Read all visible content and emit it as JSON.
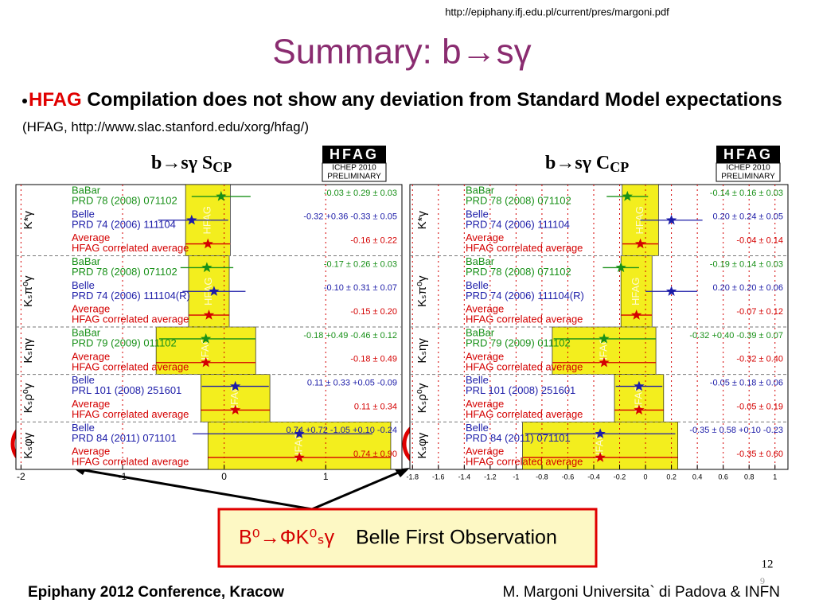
{
  "url": "http://epiphany.ifj.edu.pl/current/pres/margoni.pdf",
  "title": "Summary: b→sγ",
  "bullet": {
    "highlight": "HFAG",
    "text": " Compilation does not show any deviation from Standard Model expectations",
    "ref": "(HFAG, http://www.slac.stanford.edu/xorg/hfag/)"
  },
  "panels": [
    {
      "title": "b→sγ S",
      "title_sub": "CP",
      "badge": [
        "HFAG",
        "ICHEP 2010",
        "PRELIMINARY"
      ],
      "xlim": [
        -2.05,
        1.75
      ],
      "xticks": [
        -2,
        -1,
        0,
        1
      ],
      "groups": [
        {
          "mode": "K*γ",
          "rows": [
            {
              "name": "BaBar",
              "ref": "PRD 78 (2008) 071102",
              "value": -0.03,
              "err": [
                0.29,
                0.29
              ],
              "label": "-0.03 ± 0.29 ± 0.03",
              "color": "#189018"
            },
            {
              "name": "Belle",
              "ref": "PRD 74 (2006) 111104",
              "value": -0.32,
              "err": [
                0.33,
                0.36
              ],
              "label": "-0.32 +0.36 -0.33 ± 0.05",
              "color": "#1c1ca8"
            },
            {
              "name": "Average",
              "ref": "HFAG correlated average",
              "value": -0.16,
              "err": [
                0.22,
                0.22
              ],
              "label": "-0.16 ± 0.22",
              "color": "#d40000"
            }
          ]
        },
        {
          "mode": "Kₛπ⁰γ",
          "rows": [
            {
              "name": "BaBar",
              "ref": "PRD 78 (2008) 071102",
              "value": -0.17,
              "err": [
                0.26,
                0.26
              ],
              "label": "-0.17 ± 0.26 ± 0.03",
              "color": "#189018"
            },
            {
              "name": "Belle",
              "ref": "PRD 74 (2006) 111104(R)",
              "value": -0.1,
              "err": [
                0.31,
                0.31
              ],
              "label": "-0.10 ± 0.31 ± 0.07",
              "color": "#1c1ca8"
            },
            {
              "name": "Average",
              "ref": "HFAG correlated average",
              "value": -0.15,
              "err": [
                0.2,
                0.2
              ],
              "label": "-0.15 ± 0.20",
              "color": "#d40000"
            }
          ]
        },
        {
          "mode": "Kₛηγ",
          "rows": [
            {
              "name": "BaBar",
              "ref": "PRD 79 (2009) 011102",
              "value": -0.18,
              "err": [
                0.46,
                0.49
              ],
              "label": "-0.18 +0.49 -0.46 ± 0.12",
              "color": "#189018"
            },
            {
              "name": "Average",
              "ref": "HFAG correlated average",
              "value": -0.18,
              "err": [
                0.49,
                0.49
              ],
              "label": "-0.18 ± 0.49",
              "color": "#d40000"
            }
          ]
        },
        {
          "mode": "Kₛρ⁰γ",
          "rows": [
            {
              "name": "Belle",
              "ref": "PRL 101 (2008) 251601",
              "value": 0.11,
              "err": [
                0.33,
                0.33
              ],
              "label": "0.11 ± 0.33 +0.05 -0.09",
              "color": "#1c1ca8"
            },
            {
              "name": "Average",
              "ref": "HFAG correlated average",
              "value": 0.11,
              "err": [
                0.34,
                0.34
              ],
              "label": "0.11 ± 0.34",
              "color": "#d40000"
            }
          ]
        },
        {
          "mode": "Kₛφγ",
          "rows": [
            {
              "name": "Belle",
              "ref": "PRD 84 (2011) 071101",
              "value": 0.74,
              "err": [
                1.05,
                0.72
              ],
              "label": "0.74 +0.72 -1.05 +0.10 -0.24",
              "color": "#1c1ca8"
            },
            {
              "name": "Average",
              "ref": "HFAG correlated average",
              "value": 0.74,
              "err": [
                0.9,
                0.9
              ],
              "label": "0.74 ± 0.90",
              "color": "#d40000"
            }
          ]
        }
      ]
    },
    {
      "title": "b→sγ C",
      "title_sub": "CP",
      "badge": [
        "HFAG",
        "ICHEP 2010",
        "PRELIMINARY"
      ],
      "xlim": [
        -1.82,
        1.1
      ],
      "xticks": [
        -1.8,
        -1.6,
        -1.4,
        -1.2,
        -1,
        -0.8,
        -0.6,
        -0.4,
        -0.2,
        0,
        0.2,
        0.4,
        0.6,
        0.8,
        1
      ],
      "groups": [
        {
          "mode": "K*γ",
          "rows": [
            {
              "name": "BaBar",
              "ref": "PRD 78 (2008) 071102",
              "value": -0.14,
              "err": [
                0.16,
                0.16
              ],
              "label": "-0.14 ± 0.16 ± 0.03",
              "color": "#189018"
            },
            {
              "name": "Belle",
              "ref": "PRD 74 (2006) 111104",
              "value": 0.2,
              "err": [
                0.24,
                0.24
              ],
              "label": "0.20 ± 0.24 ± 0.05",
              "color": "#1c1ca8"
            },
            {
              "name": "Average",
              "ref": "HFAG correlated average",
              "value": -0.04,
              "err": [
                0.14,
                0.14
              ],
              "label": "-0.04 ± 0.14",
              "color": "#d40000"
            }
          ]
        },
        {
          "mode": "Kₛπ⁰γ",
          "rows": [
            {
              "name": "BaBar",
              "ref": "PRD 78 (2008) 071102",
              "value": -0.19,
              "err": [
                0.14,
                0.14
              ],
              "label": "-0.19 ± 0.14 ± 0.03",
              "color": "#189018"
            },
            {
              "name": "Belle",
              "ref": "PRD 74 (2006) 111104(R)",
              "value": 0.2,
              "err": [
                0.2,
                0.2
              ],
              "label": "0.20 ± 0.20 ± 0.06",
              "color": "#1c1ca8"
            },
            {
              "name": "Average",
              "ref": "HFAG correlated average",
              "value": -0.07,
              "err": [
                0.12,
                0.12
              ],
              "label": "-0.07 ± 0.12",
              "color": "#d40000"
            }
          ]
        },
        {
          "mode": "Kₛηγ",
          "rows": [
            {
              "name": "BaBar",
              "ref": "PRD 79 (2009) 011102",
              "value": -0.32,
              "err": [
                0.39,
                0.4
              ],
              "label": "-0.32 +0.40 -0.39 ± 0.07",
              "color": "#189018"
            },
            {
              "name": "Average",
              "ref": "HFAG correlated average",
              "value": -0.32,
              "err": [
                0.4,
                0.4
              ],
              "label": "-0.32 ± 0.40",
              "color": "#d40000"
            }
          ]
        },
        {
          "mode": "Kₛρ⁰γ",
          "rows": [
            {
              "name": "Belle",
              "ref": "PRL 101 (2008) 251601",
              "value": -0.05,
              "err": [
                0.18,
                0.18
              ],
              "label": "-0.05 ± 0.18 ± 0.06",
              "color": "#1c1ca8"
            },
            {
              "name": "Average",
              "ref": "HFAG correlated average",
              "value": -0.05,
              "err": [
                0.19,
                0.19
              ],
              "label": "-0.05 ± 0.19",
              "color": "#d40000"
            }
          ]
        },
        {
          "mode": "Kₛφγ",
          "rows": [
            {
              "name": "Belle",
              "ref": "PRD 84 (2011) 071101",
              "value": -0.35,
              "err": [
                0.58,
                0.58
              ],
              "label": "-0.35 ± 0.58 +0.10 -0.23",
              "color": "#1c1ca8"
            },
            {
              "name": "Average",
              "ref": "HFAG correlated average",
              "value": -0.35,
              "err": [
                0.6,
                0.6
              ],
              "label": "-0.35 ± 0.60",
              "color": "#d40000"
            }
          ]
        }
      ]
    }
  ],
  "callout": {
    "formula": "B⁰→ΦK⁰ₛγ",
    "text": "Belle First Observation"
  },
  "footer_left": "Epiphany 2012 Conference, Kracow",
  "footer_right": "M. Margoni Universita` di Padova & INFN",
  "page": "12",
  "page_sub": "9"
}
